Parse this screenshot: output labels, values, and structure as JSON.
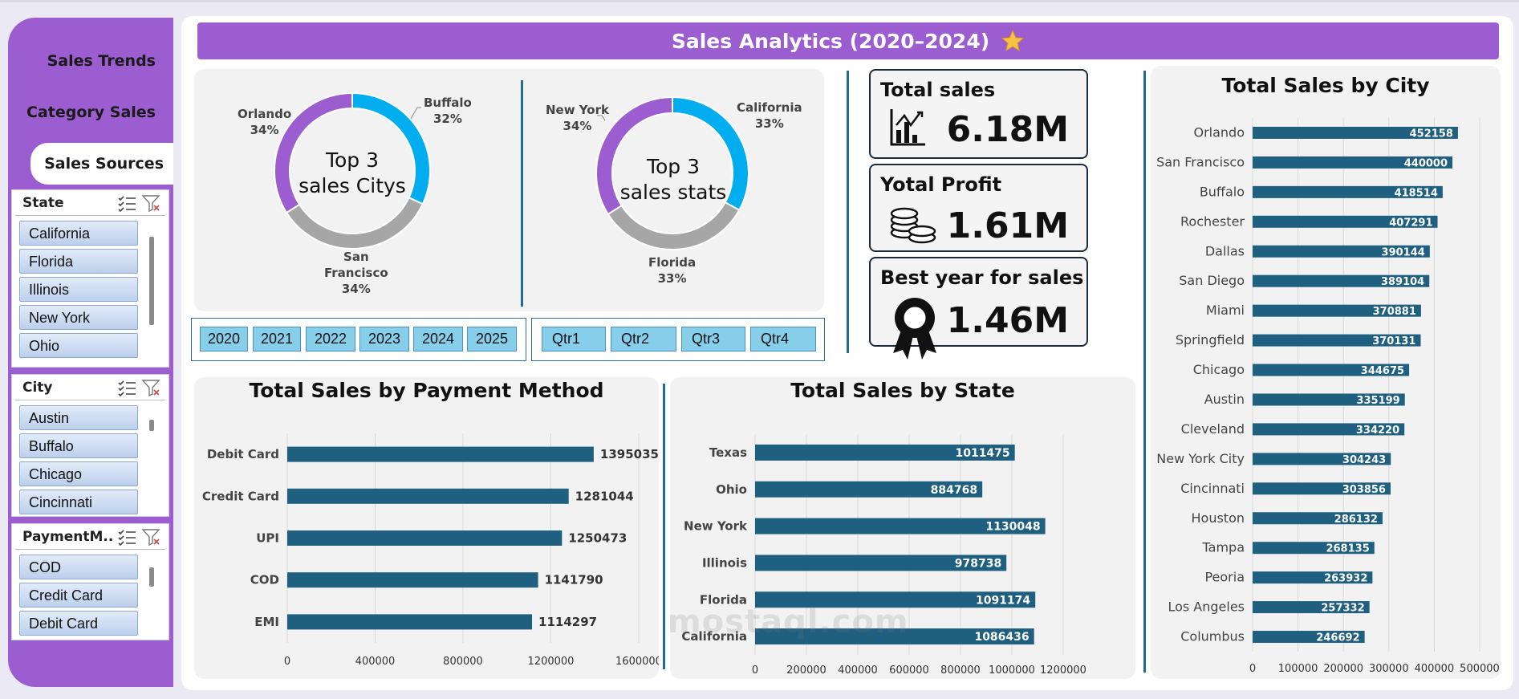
{
  "sidebar": {
    "nav": [
      {
        "label": "Sales Trends"
      },
      {
        "label": "Category Sales"
      },
      {
        "label": "Sales Sources",
        "active": true
      }
    ],
    "slicers": [
      {
        "title": "State",
        "items": [
          "California",
          "Florida",
          "Illinois",
          "New York",
          "Ohio"
        ],
        "scroll": 0.0
      },
      {
        "title": "City",
        "items": [
          "Austin",
          "Buffalo",
          "Chicago",
          "Cincinnati"
        ],
        "scroll": 0.05
      },
      {
        "title": "PaymentM...",
        "items": [
          "COD",
          "Credit Card",
          "Debit Card"
        ],
        "scroll": 0.3
      }
    ]
  },
  "header": {
    "title": "Sales Analytics (2020–2024)",
    "icon": "star-icon"
  },
  "donuts": [
    {
      "center_line1": "Top 3",
      "center_line2": "sales Citys",
      "slices": [
        {
          "name": "Buffalo",
          "pct": "32%",
          "value": 32,
          "color": "#00aeef"
        },
        {
          "name": "San Francisco",
          "pct": "34%",
          "value": 34,
          "color": "#a6a6a6"
        },
        {
          "name": "Orlando",
          "pct": "34%",
          "value": 34,
          "color": "#9b5dd0"
        }
      ]
    },
    {
      "center_line1": "Top 3",
      "center_line2": "sales stats",
      "slices": [
        {
          "name": "California",
          "pct": "33%",
          "value": 33,
          "color": "#00aeef"
        },
        {
          "name": "Florida",
          "pct": "33%",
          "value": 33,
          "color": "#a6a6a6"
        },
        {
          "name": "New York",
          "pct": "34%",
          "value": 34,
          "color": "#9b5dd0"
        }
      ]
    }
  ],
  "label_text": {
    "sf_line1": "San",
    "sf_line2": "Francisco"
  },
  "year_filters": [
    "2020",
    "2021",
    "2022",
    "2023",
    "2024",
    "2025"
  ],
  "quarter_filters": [
    "Qtr1",
    "Qtr2",
    "Qtr3",
    "Qtr4"
  ],
  "kpis": [
    {
      "title": "Total sales",
      "value": "6.18M",
      "icon": "chart-growth-icon"
    },
    {
      "title": "Yotal Profit",
      "value": "1.61M",
      "icon": "coins-icon"
    },
    {
      "title": "Best year for sales",
      "value": "1.46M",
      "icon": "award-ribbon-icon"
    }
  ],
  "colors": {
    "bar": "#1f5f80",
    "accent": "#9b5dd0",
    "donut_blue": "#00aeef",
    "donut_gray": "#a6a6a6"
  },
  "chart_data": [
    {
      "type": "bar",
      "title": "Total Sales by Payment Method",
      "orientation": "horizontal",
      "categories": [
        "Debit Card",
        "Credit Card",
        "UPI",
        "COD",
        "EMI"
      ],
      "values": [
        1395035,
        1281044,
        1250473,
        1141790,
        1114297
      ],
      "xlim": [
        0,
        1600000
      ],
      "ticks": [
        "0",
        "400000",
        "800000",
        "1200000",
        "1600000"
      ],
      "tick_values": [
        0,
        400000,
        800000,
        1200000,
        1600000
      ],
      "label_position": "outside",
      "grid": true
    },
    {
      "type": "bar",
      "title": "Total Sales by State",
      "orientation": "horizontal",
      "categories": [
        "Texas",
        "Ohio",
        "New York",
        "Illinois",
        "Florida",
        "California"
      ],
      "values": [
        1011475,
        884768,
        1130048,
        978738,
        1091174,
        1086436
      ],
      "xlim": [
        0,
        1350000
      ],
      "ticks": [
        "0",
        "200000",
        "400000",
        "600000",
        "800000",
        "1000000",
        "1200000"
      ],
      "tick_values": [
        0,
        200000,
        400000,
        600000,
        800000,
        1000000,
        1200000
      ],
      "label_position": "inside",
      "grid": true
    },
    {
      "type": "bar",
      "title": "Total Sales by City",
      "orientation": "horizontal",
      "categories": [
        "Orlando",
        "San Francisco",
        "Buffalo",
        "Rochester",
        "Dallas",
        "San Diego",
        "Miami",
        "Springfield",
        "Chicago",
        "Austin",
        "Cleveland",
        "New York City",
        "Cincinnati",
        "Houston",
        "Tampa",
        "Peoria",
        "Los Angeles",
        "Columbus"
      ],
      "values": [
        452158,
        440000,
        418514,
        407291,
        390144,
        389104,
        370881,
        370131,
        344675,
        335199,
        334220,
        304243,
        303856,
        286132,
        268135,
        263932,
        257332,
        246692
      ],
      "xlim": [
        0,
        500000
      ],
      "ticks": [
        "0",
        "100000",
        "200000",
        "300000",
        "400000",
        "500000"
      ],
      "tick_values": [
        0,
        100000,
        200000,
        300000,
        400000,
        500000
      ],
      "label_position": "inside",
      "grid": true
    }
  ],
  "watermark": "mostaql.com"
}
